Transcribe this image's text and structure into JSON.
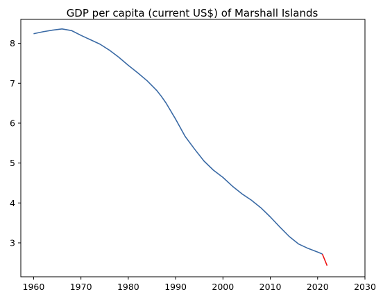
{
  "chart_data": {
    "type": "line",
    "title": "GDP per capita (current US$) of Marshall Islands",
    "xlabel": "",
    "ylabel": "",
    "xlim": [
      1957.3,
      2030
    ],
    "ylim": [
      2.15,
      8.6
    ],
    "xticks": [
      1960,
      1970,
      1980,
      1990,
      2000,
      2010,
      2020,
      2030
    ],
    "yticks": [
      3,
      4,
      5,
      6,
      7,
      8
    ],
    "grid": false,
    "legend": "none",
    "series": [
      {
        "color": "#3a6aa5",
        "x": [
          1960,
          1962,
          1964,
          1966,
          1968,
          1970,
          1972,
          1974,
          1976,
          1978,
          1980,
          1982,
          1984,
          1986,
          1987,
          1988,
          1990,
          1992,
          1994,
          1996,
          1998,
          2000,
          2002,
          2004,
          2006,
          2008,
          2010,
          2012,
          2014,
          2016,
          2018,
          2020,
          2021
        ],
        "y": [
          8.24,
          8.29,
          8.33,
          8.36,
          8.32,
          8.2,
          8.09,
          7.98,
          7.83,
          7.65,
          7.45,
          7.26,
          7.06,
          6.82,
          6.67,
          6.5,
          6.1,
          5.67,
          5.35,
          5.05,
          4.82,
          4.64,
          4.42,
          4.23,
          4.07,
          3.88,
          3.65,
          3.4,
          3.16,
          2.97,
          2.86,
          2.77,
          2.72
        ]
      },
      {
        "color": "#ee1111",
        "x": [
          2021,
          2022
        ],
        "y": [
          2.72,
          2.43
        ]
      }
    ]
  }
}
